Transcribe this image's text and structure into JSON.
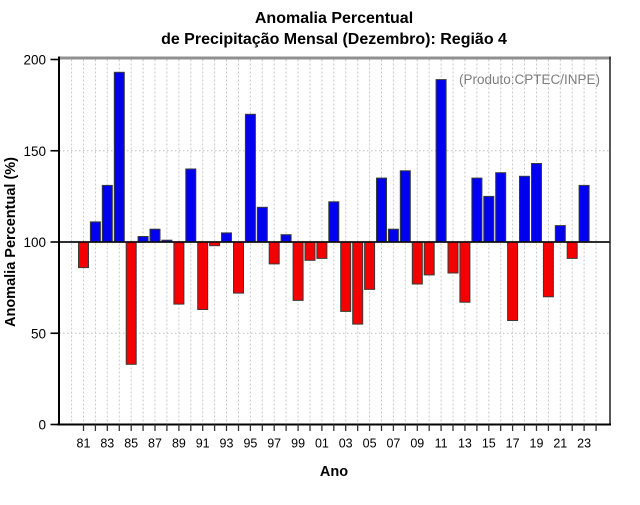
{
  "chart_data": {
    "type": "bar",
    "title_line1": "Anomalia Percentual",
    "title_line2": "de Precipitação Mensal (Dezembro): Região 4",
    "annotation": "(Produto:CPTEC/INPE)",
    "xlabel": "Ano",
    "ylabel": "Anomalia Percentual (%)",
    "ylim": [
      0,
      200
    ],
    "yticks": [
      0,
      50,
      100,
      150,
      200
    ],
    "grid_y_dotted": [
      50,
      150
    ],
    "baseline": 100,
    "legend": "none",
    "grid": "on",
    "years": [
      1981,
      1982,
      1983,
      1984,
      1985,
      1986,
      1987,
      1988,
      1989,
      1990,
      1991,
      1992,
      1993,
      1994,
      1995,
      1996,
      1997,
      1998,
      1999,
      2000,
      2001,
      2002,
      2003,
      2004,
      2005,
      2006,
      2007,
      2008,
      2009,
      2010,
      2011,
      2012,
      2013,
      2014,
      2015,
      2016,
      2017,
      2018,
      2019,
      2020,
      2021,
      2022,
      2023
    ],
    "values": [
      86,
      111,
      131,
      193,
      33,
      103,
      107,
      101,
      66,
      140,
      63,
      98,
      105,
      72,
      170,
      119,
      88,
      104,
      68,
      90,
      91,
      122,
      62,
      55,
      74,
      135,
      107,
      139,
      77,
      82,
      189,
      83,
      67,
      135,
      125,
      138,
      57,
      136,
      143,
      70,
      109,
      91,
      131
    ],
    "xtick_labels": [
      "81",
      "83",
      "85",
      "87",
      "89",
      "91",
      "93",
      "95",
      "97",
      "99",
      "01",
      "03",
      "05",
      "07",
      "09",
      "11",
      "13",
      "15",
      "17",
      "19",
      "21",
      "23"
    ],
    "colors": {
      "above_baseline": "#0000EE",
      "below_baseline": "#F40000",
      "bar_outline": "#3A3A3A",
      "annotation_gray": "#7E7E7E",
      "axis_black": "#000000",
      "top_frame_gray": "#909090",
      "grid_gray": "#C9C9C9"
    }
  }
}
